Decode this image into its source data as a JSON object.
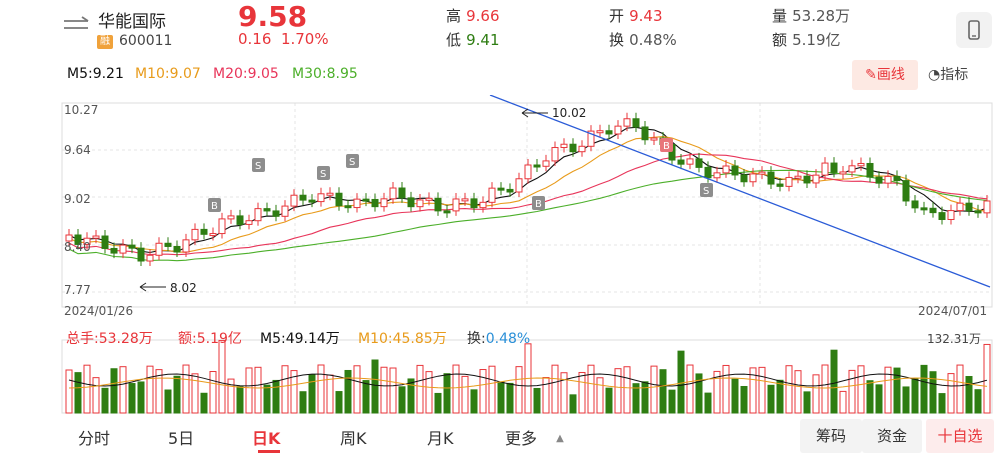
{
  "header": {
    "stock_name": "华能国际",
    "badge": "融",
    "stock_code": "600011",
    "price": "9.58",
    "change": "0.16",
    "change_pct": "1.70%",
    "high_label": "高",
    "high_value": "9.66",
    "low_label": "低",
    "low_value": "9.41",
    "open_label": "开",
    "open_value": "9.43",
    "turnover_label": "换",
    "turnover_value": "0.48%",
    "volume_label": "量",
    "volume_value": "53.28万",
    "amount_label": "额",
    "amount_value": "5.19亿"
  },
  "ma_bar": {
    "m5": "M5:9.21",
    "m10": "M10:9.07",
    "m20": "M20:9.05",
    "m30": "M30:8.95",
    "draw_label": "画线",
    "indicator_label": "指标"
  },
  "chart": {
    "y_ticks": [
      "10.27",
      "9.64",
      "9.02",
      "8.40",
      "7.77"
    ],
    "start_date": "2024/01/26",
    "end_date": "2024/07/01",
    "high_marker": "10.02",
    "low_marker": "8.02",
    "buy_label": "B",
    "sell_label": "S"
  },
  "volume_bar": {
    "total": "总手:53.28万",
    "amount": "额:5.19亿",
    "m5": "M5:49.14万",
    "m10": "M10:45.85万",
    "turnover": "换:0.48%",
    "max": "132.31万"
  },
  "tabs": {
    "minute": "分时",
    "five_day": "5日",
    "day": "日K",
    "week": "周K",
    "month": "月K",
    "more": "更多"
  },
  "actions": {
    "chips": "筹码",
    "funds": "资金",
    "favorite": "十自选"
  },
  "colors": {
    "up": "#e8353a",
    "down": "#2e7d12",
    "m5": "#111111",
    "m10": "#e89b1b",
    "m20": "#e8355a",
    "m30": "#4caf2a",
    "trend": "#2a5bd7"
  }
}
